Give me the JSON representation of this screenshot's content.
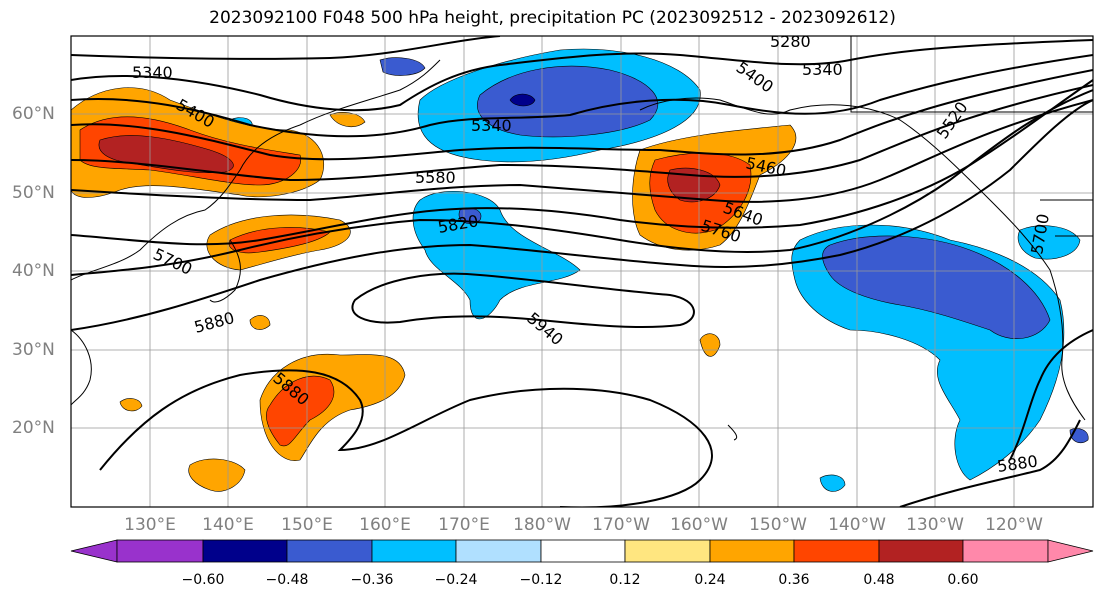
{
  "title": "2023092100 F048 500 hPa height, precipitation PC (2023092512 - 2023092612)",
  "lat_labels": [
    "60°N",
    "50°N",
    "40°N",
    "30°N",
    "20°N"
  ],
  "lon_labels": [
    "130°E",
    "140°E",
    "150°E",
    "160°E",
    "170°E",
    "180°W",
    "170°W",
    "160°W",
    "150°W",
    "140°W",
    "130°W",
    "120°W"
  ],
  "contour_labels": [
    "5340",
    "5400",
    "5280",
    "5340",
    "5400",
    "5340",
    "5460",
    "5520",
    "5580",
    "5640",
    "5700",
    "5760",
    "5820",
    "5880",
    "5940",
    "5880",
    "5880",
    "5700"
  ],
  "colorbar": {
    "ticks": [
      "−0.60",
      "−0.48",
      "−0.36",
      "−0.24",
      "−0.12",
      "0.12",
      "0.24",
      "0.36",
      "0.48",
      "0.60"
    ],
    "colors": [
      "#9932cc",
      "#00008b",
      "#3a5bd0",
      "#00bfff",
      "#b0e0ff",
      "#ffffff",
      "#ffe680",
      "#ffa500",
      "#ff4500",
      "#b22222",
      "#ff88aa"
    ]
  }
}
